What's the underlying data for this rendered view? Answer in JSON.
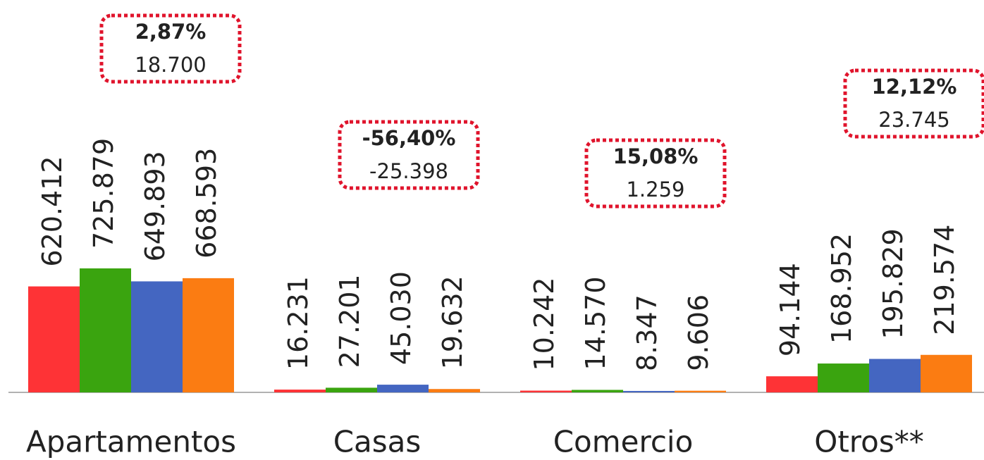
{
  "chart_data": {
    "type": "bar",
    "categories": [
      "Apartamentos",
      "Casas",
      "Comercio",
      "Otros**"
    ],
    "series": [
      {
        "color": "#fe3336",
        "values": [
          620412,
          16231,
          10242,
          94144
        ],
        "value_labels": [
          "620.412",
          "16.231",
          "10.242",
          "94.144"
        ]
      },
      {
        "color": "#3aa40f",
        "values": [
          725879,
          27201,
          14570,
          168952
        ],
        "value_labels": [
          "725.879",
          "27.201",
          "14.570",
          "168.952"
        ]
      },
      {
        "color": "#4466c1",
        "values": [
          649893,
          45030,
          8347,
          195829
        ],
        "value_labels": [
          "649.893",
          "45.030",
          "8.347",
          "195.829"
        ]
      },
      {
        "color": "#fb7c12",
        "values": [
          668593,
          19632,
          9606,
          219574
        ],
        "value_labels": [
          "668.593",
          "19.632",
          "9.606",
          "219.574"
        ]
      }
    ],
    "annotations": [
      {
        "pct": "2,87%",
        "change": "18.700"
      },
      {
        "pct": "-56,40%",
        "change": "-25.398"
      },
      {
        "pct": "15,08%",
        "change": "1.259"
      },
      {
        "pct": "12,12%",
        "change": "23.745"
      }
    ]
  }
}
